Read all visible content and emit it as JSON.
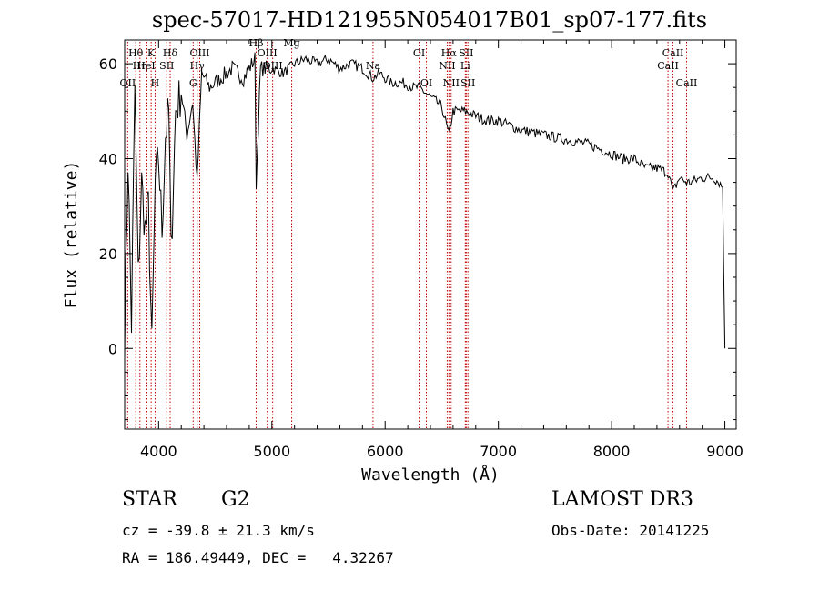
{
  "title": "spec-57017-HD121955N054017B01_sp07-177.fits",
  "info": {
    "object_class": "STAR",
    "subclass": "G2",
    "survey": "LAMOST DR3",
    "cz": "cz = -39.8 ± 21.3 km/s",
    "obs_date": "Obs-Date: 20141225",
    "radec": "RA = 186.49449, DEC =   4.32267"
  },
  "chart_data": {
    "type": "line",
    "title": "spec-57017-HD121955N054017B01_sp07-177.fits",
    "xlabel": "Wavelength (Å)",
    "ylabel": "Flux (relative)",
    "xlim": [
      3700,
      9100
    ],
    "ylim": [
      -17,
      65
    ],
    "xticks": [
      4000,
      5000,
      6000,
      7000,
      8000,
      9000
    ],
    "yticks": [
      0,
      20,
      40,
      60
    ],
    "series": [
      {
        "name": "flux",
        "x": [
          3700,
          3730,
          3760,
          3790,
          3820,
          3850,
          3880,
          3910,
          3940,
          3970,
          4000,
          4030,
          4060,
          4090,
          4110,
          4150,
          4200,
          4250,
          4300,
          4340,
          4380,
          4450,
          4550,
          4650,
          4750,
          4850,
          4861,
          4900,
          5000,
          5100,
          5200,
          5300,
          5400,
          5500,
          5600,
          5700,
          5800,
          5890,
          5950,
          6050,
          6150,
          6250,
          6300,
          6400,
          6500,
          6563,
          6600,
          6700,
          6800,
          6900,
          7000,
          7200,
          7400,
          7600,
          7800,
          8000,
          8100,
          8200,
          8300,
          8400,
          8500,
          8542,
          8600,
          8662,
          8700,
          8800,
          8850,
          8900,
          8950,
          8980,
          9000
        ],
        "y": [
          3,
          40,
          5,
          55,
          15,
          35,
          25,
          30,
          0,
          35,
          40,
          25,
          45,
          50,
          20,
          50,
          54,
          45,
          52,
          35,
          58,
          55,
          57,
          59,
          57,
          61,
          35,
          59,
          59,
          58,
          60,
          61,
          60,
          61,
          59,
          60,
          59,
          57,
          58,
          56,
          56,
          55,
          55,
          53,
          51,
          45,
          50,
          50,
          49,
          48,
          48,
          46,
          45,
          44,
          43,
          41,
          40,
          40,
          38,
          38,
          37,
          33,
          36,
          35,
          35,
          36,
          36,
          36,
          35,
          34,
          0
        ]
      }
    ],
    "line_markers": [
      {
        "label": "Hθ",
        "wavelength": 3798,
        "row": 1
      },
      {
        "label": "OII",
        "wavelength": 3727,
        "row": 3
      },
      {
        "label": "Hη",
        "wavelength": 3835,
        "row": 2
      },
      {
        "label": "HeI",
        "wavelength": 3889,
        "row": 2
      },
      {
        "label": "K",
        "wavelength": 3934,
        "row": 1
      },
      {
        "label": "H",
        "wavelength": 3969,
        "row": 3
      },
      {
        "label": "SII",
        "wavelength": 4072,
        "row": 2
      },
      {
        "label": "Hδ",
        "wavelength": 4102,
        "row": 1
      },
      {
        "label": "OIII",
        "wavelength": 4363,
        "row": 1
      },
      {
        "label": "Hγ",
        "wavelength": 4341,
        "row": 2
      },
      {
        "label": "G",
        "wavelength": 4305,
        "row": 3
      },
      {
        "label": "OIII",
        "wavelength": 4959,
        "row": 1
      },
      {
        "label": "OIII",
        "wavelength": 5007,
        "row": 2
      },
      {
        "label": "Mg",
        "wavelength": 5175,
        "row": 0
      },
      {
        "label": "Hβ",
        "wavelength": 4861,
        "row": 0
      },
      {
        "label": "Na",
        "wavelength": 5893,
        "row": 2
      },
      {
        "label": "OI",
        "wavelength": 6300,
        "row": 1
      },
      {
        "label": "OI",
        "wavelength": 6364,
        "row": 3
      },
      {
        "label": "Hα",
        "wavelength": 6563,
        "row": 1
      },
      {
        "label": "NII",
        "wavelength": 6548,
        "row": 2
      },
      {
        "label": "NII",
        "wavelength": 6583,
        "row": 3
      },
      {
        "label": "SII",
        "wavelength": 6716,
        "row": 1
      },
      {
        "label": "Li",
        "wavelength": 6708,
        "row": 2
      },
      {
        "label": "SII",
        "wavelength": 6731,
        "row": 3
      },
      {
        "label": "CaII",
        "wavelength": 8542,
        "row": 1
      },
      {
        "label": "CaII",
        "wavelength": 8498,
        "row": 2
      },
      {
        "label": "CaII",
        "wavelength": 8662,
        "row": 3
      }
    ]
  }
}
